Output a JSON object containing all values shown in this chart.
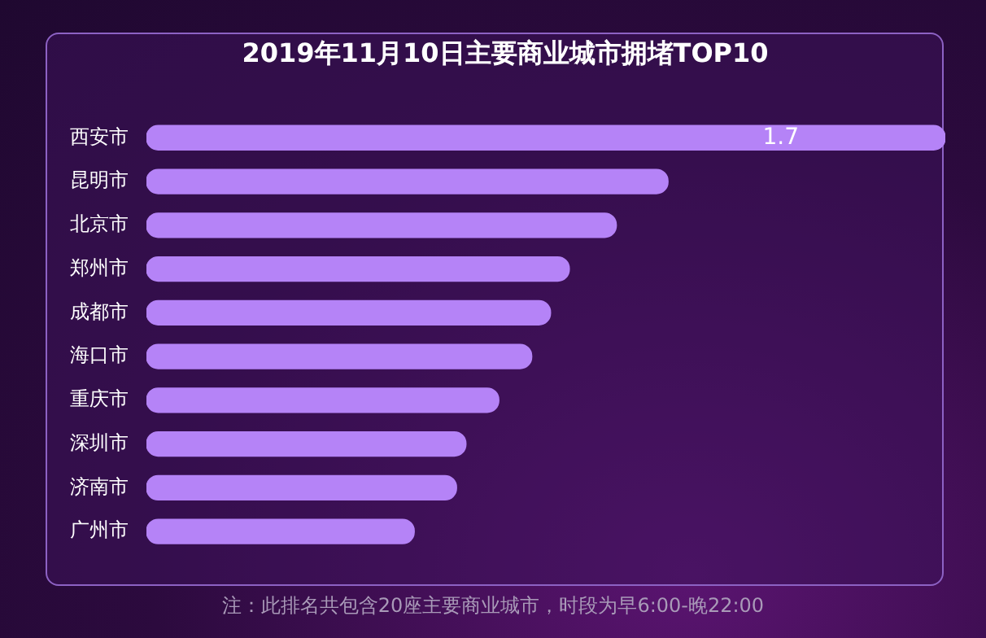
{
  "chart_data": {
    "type": "bar",
    "orientation": "horizontal",
    "title": "2019年11月10日主要商业城市拥堵TOP10",
    "categories": [
      "西安市",
      "昆明市",
      "北京市",
      "郑州市",
      "成都市",
      "海口市",
      "重庆市",
      "深圳市",
      "济南市",
      "广州市"
    ],
    "values": [
      1.7,
      1.11,
      1.0,
      0.9,
      0.86,
      0.82,
      0.75,
      0.68,
      0.66,
      0.57
    ],
    "value_labels": [
      "1.7",
      null,
      null,
      null,
      null,
      null,
      null,
      null,
      null,
      null
    ],
    "color": "#b583f7",
    "tick_labels": "y",
    "annotations": [
      "注：此排名共包含20座主要商业城市，时段为早6:00-晚22:00"
    ]
  }
}
